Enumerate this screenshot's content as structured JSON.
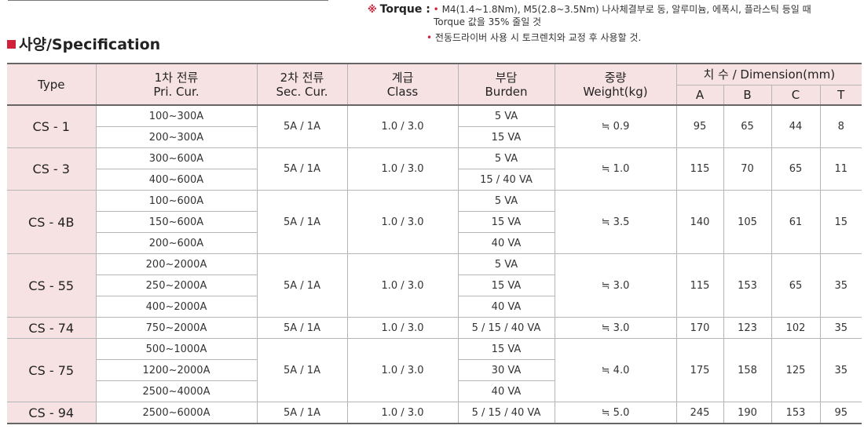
{
  "note": {
    "mark": "※",
    "label": "Torque :",
    "bullet": "•",
    "line1": "M4(1.4~1.8Nm), M5(2.8~3.5Nm) 나사체결부로 동, 알루미늄, 에폭시, 플라스틱 등일 때",
    "line2": "Torque 값을 35% 줄일 것",
    "line3": "전동드라이버 사용 시 토크렌치와 교정 후 사용할 것."
  },
  "section_title": "사양/Specification",
  "headers": {
    "type": "Type",
    "pri_kr": "1차 전류",
    "pri_en": "Pri. Cur.",
    "sec_kr": "2차 전류",
    "sec_en": "Sec. Cur.",
    "class_kr": "계급",
    "class_en": "Class",
    "burden_kr": "부담",
    "burden_en": "Burden",
    "weight_kr": "중량",
    "weight_en": "Weight(kg)",
    "dimension": "치 수 / Dimension(mm)",
    "dim_a": "A",
    "dim_b": "B",
    "dim_c": "C",
    "dim_t": "T"
  },
  "models": [
    {
      "type": "CS - 1",
      "sec": "5A / 1A",
      "class": "1.0 / 3.0",
      "weight": "≒ 0.9",
      "a": "95",
      "b": "65",
      "c": "44",
      "t": "8",
      "rows": [
        {
          "pri": "100~300A",
          "burden": "5 VA"
        },
        {
          "pri": "200~300A",
          "burden": "15 VA"
        }
      ]
    },
    {
      "type": "CS - 3",
      "sec": "5A / 1A",
      "class": "1.0 / 3.0",
      "weight": "≒ 1.0",
      "a": "115",
      "b": "70",
      "c": "65",
      "t": "11",
      "rows": [
        {
          "pri": "300~600A",
          "burden": "5 VA"
        },
        {
          "pri": "400~600A",
          "burden": "15 / 40 VA"
        }
      ]
    },
    {
      "type": "CS - 4B",
      "sec": "5A / 1A",
      "class": "1.0 / 3.0",
      "weight": "≒ 3.5",
      "a": "140",
      "b": "105",
      "c": "61",
      "t": "15",
      "rows": [
        {
          "pri": "100~600A",
          "burden": "5 VA"
        },
        {
          "pri": "150~600A",
          "burden": "15 VA"
        },
        {
          "pri": "200~600A",
          "burden": "40 VA"
        }
      ]
    },
    {
      "type": "CS - 55",
      "sec": "5A / 1A",
      "class": "1.0 / 3.0",
      "weight": "≒ 3.0",
      "a": "115",
      "b": "153",
      "c": "65",
      "t": "35",
      "rows": [
        {
          "pri": "200~2000A",
          "burden": "5 VA"
        },
        {
          "pri": "250~2000A",
          "burden": "15 VA"
        },
        {
          "pri": "400~2000A",
          "burden": "40 VA"
        }
      ]
    },
    {
      "type": "CS - 74",
      "sec": "5A / 1A",
      "class": "1.0 / 3.0",
      "weight": "≒ 3.0",
      "a": "170",
      "b": "123",
      "c": "102",
      "t": "35",
      "rows": [
        {
          "pri": "750~2000A",
          "burden": "5 / 15 / 40 VA"
        }
      ]
    },
    {
      "type": "CS - 75",
      "sec": "5A / 1A",
      "class": "1.0 / 3.0",
      "weight": "≒ 4.0",
      "a": "175",
      "b": "158",
      "c": "125",
      "t": "35",
      "rows": [
        {
          "pri": "500~1000A",
          "burden": "15 VA"
        },
        {
          "pri": "1200~2000A",
          "burden": "30 VA"
        },
        {
          "pri": "2500~4000A",
          "burden": "40 VA"
        }
      ]
    },
    {
      "type": "CS - 94",
      "sec": "5A / 1A",
      "class": "1.0 / 3.0",
      "weight": "≒ 5.0",
      "a": "245",
      "b": "190",
      "c": "153",
      "t": "95",
      "rows": [
        {
          "pri": "2500~6000A",
          "burden": "5 / 15 / 40 VA"
        }
      ]
    }
  ],
  "colors": {
    "accent": "#d0213a",
    "header_bg": "#f6e1e3"
  }
}
